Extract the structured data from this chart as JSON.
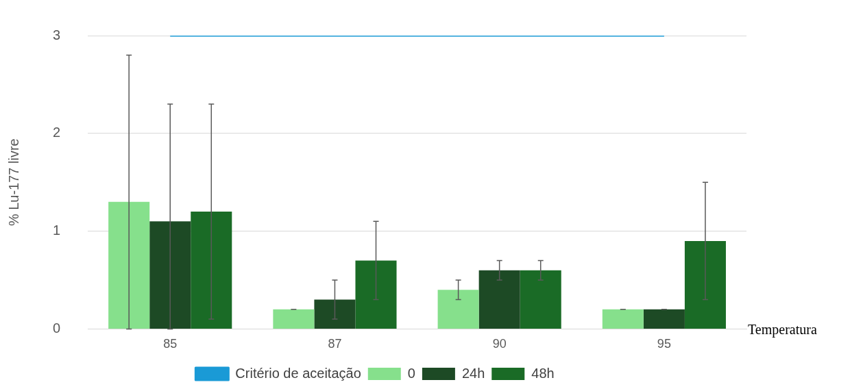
{
  "chart_data": {
    "type": "bar",
    "xlabel": "Temperatura",
    "ylabel": "% Lu-177 livre",
    "categories": [
      "85",
      "87",
      "90",
      "95"
    ],
    "series": [
      {
        "name": "0",
        "color": "#86e08c",
        "values": [
          1.3,
          0.2,
          0.4,
          0.2
        ],
        "errors": [
          [
            0,
            2.8
          ],
          0,
          0.1,
          0
        ]
      },
      {
        "name": "24h",
        "color": "#1d4a25",
        "values": [
          1.1,
          0.3,
          0.6,
          0.2
        ],
        "errors": [
          [
            0,
            2.3
          ],
          0.2,
          0.1,
          0
        ]
      },
      {
        "name": "48h",
        "color": "#1a6b26",
        "values": [
          1.2,
          0.7,
          0.6,
          0.9
        ],
        "errors": [
          1.1,
          0.4,
          0.1,
          0.6
        ]
      },
      {
        "name": "Critério de aceitação",
        "type": "line",
        "color": "#1a9ad6",
        "values": [
          3,
          3,
          3,
          3
        ],
        "marker": "none"
      }
    ],
    "ylim": [
      0,
      3
    ],
    "yticks": [
      0,
      1,
      2,
      3
    ],
    "grid": "y",
    "legend": "bottom"
  }
}
